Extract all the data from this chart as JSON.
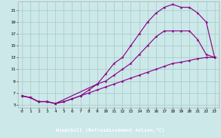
{
  "xlabel": "Windchill (Refroidissement éolien,°C)",
  "bg_color": "#cce8e8",
  "grid_color": "#a8cccc",
  "line_color": "#880088",
  "xlim": [
    -0.5,
    23.5
  ],
  "ylim": [
    4.5,
    22.5
  ],
  "xticks": [
    0,
    1,
    2,
    3,
    4,
    5,
    6,
    7,
    8,
    9,
    10,
    11,
    12,
    13,
    14,
    15,
    16,
    17,
    18,
    19,
    20,
    21,
    22,
    23
  ],
  "yticks": [
    5,
    7,
    9,
    11,
    13,
    15,
    17,
    19,
    21
  ],
  "line1_x": [
    0,
    1,
    2,
    3,
    4,
    9,
    10,
    11,
    12,
    13,
    14,
    15,
    16,
    17,
    18,
    19,
    20,
    21,
    22,
    23
  ],
  "line1_y": [
    6.5,
    6.2,
    5.5,
    5.5,
    5.2,
    8.5,
    10.2,
    12.0,
    13.0,
    15.0,
    17.0,
    19.0,
    20.5,
    21.5,
    22.0,
    21.5,
    21.5,
    20.5,
    19.0,
    13.0
  ],
  "line2_x": [
    0,
    1,
    2,
    3,
    4,
    5,
    6,
    7,
    8,
    9,
    10,
    11,
    12,
    13,
    14,
    15,
    16,
    17,
    18,
    19,
    20,
    21,
    22,
    23
  ],
  "line2_y": [
    6.5,
    6.2,
    5.5,
    5.5,
    5.2,
    5.5,
    6.0,
    6.5,
    7.5,
    8.5,
    9.0,
    10.0,
    11.0,
    12.0,
    13.5,
    15.0,
    16.5,
    17.5,
    17.5,
    17.5,
    17.5,
    16.0,
    13.5,
    13.0
  ],
  "line3_x": [
    0,
    1,
    2,
    3,
    4,
    5,
    6,
    7,
    8,
    9,
    10,
    11,
    12,
    13,
    14,
    15,
    16,
    17,
    18,
    19,
    20,
    21,
    22,
    23
  ],
  "line3_y": [
    6.5,
    6.2,
    5.5,
    5.5,
    5.2,
    5.5,
    6.0,
    6.5,
    7.0,
    7.5,
    8.0,
    8.5,
    9.0,
    9.5,
    10.0,
    10.5,
    11.0,
    11.5,
    12.0,
    12.2,
    12.5,
    12.8,
    13.0,
    13.0
  ]
}
